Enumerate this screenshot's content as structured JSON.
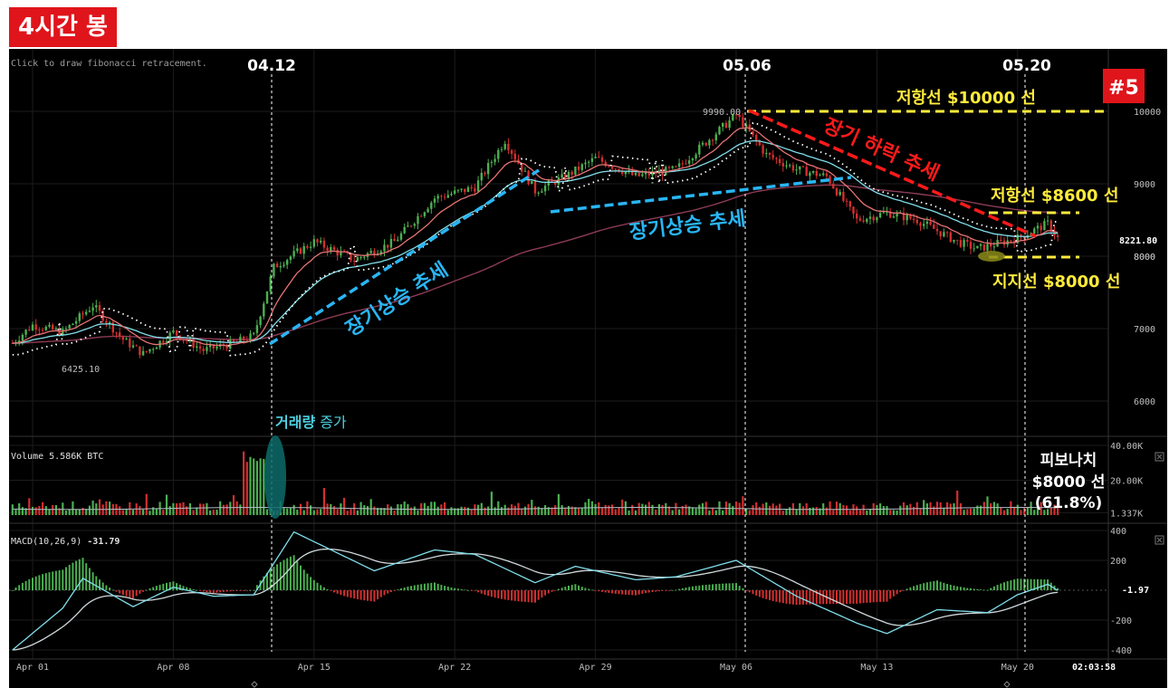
{
  "title": "4시간 봉",
  "badge": "#5",
  "hint": "Click to draw fibonacci retracement.",
  "date_markers": [
    "04.12",
    "05.06",
    "05.20"
  ],
  "annotations": {
    "resistance_10000": "저항선 $10000 선",
    "resistance_8600": "저항선 $8600 선",
    "support_8000": "지지선 $8000 선",
    "uptrend_1": "장기상승 추세",
    "uptrend_2": "장기상승 추세",
    "downtrend": "장기 하락 추세",
    "volume_increase_bold": "거래량",
    "volume_increase_rest": " 증가",
    "fibonacci_1": "피보나치",
    "fibonacci_2": "$8000 선",
    "fibonacci_3": "(61.8%)"
  },
  "price_labels": {
    "high": "9990.00",
    "low": "6425.10",
    "last": "8221.80"
  },
  "volume_header": "Volume  5.586K BTC",
  "macd_header_label": "MACD(10,26,9)",
  "macd_header_value": "-31.79",
  "macd_value_label": "-1.97",
  "timestamp": "02:03:58",
  "colors": {
    "up": "#4caf50",
    "down": "#d32f2f",
    "resistance": "#ffeb3b",
    "uptrend": "#29b6f6",
    "downtrend": "#ff1a1a",
    "badge": "#e0151b",
    "ma_fast": "#e57373",
    "ma_mid": "#80deea",
    "ma_slow": "#8d3b55",
    "dotted": "#ffffff"
  },
  "chart_data": [
    {
      "type": "candlestick",
      "title": "",
      "x_ticks": [
        "Apr 01",
        "Apr 08",
        "Apr 15",
        "Apr 22",
        "Apr 29",
        "May 06",
        "May 13",
        "May 20"
      ],
      "y_ticks": [
        "10000",
        "9000",
        "8000",
        "7000",
        "6000"
      ],
      "ylim": [
        5500,
        10300
      ],
      "log_scale": false,
      "grid": true,
      "support_resistance": [
        10000,
        8600,
        8000
      ],
      "annotated_high": 9990.0,
      "annotated_low": 6425.1,
      "last_price": 8221.8,
      "close_path": [
        {
          "x": "Mar 31 00:00",
          "y": 6800
        },
        {
          "x": "Apr 01 00:00",
          "y": 7050
        },
        {
          "x": "Apr 02 12:00",
          "y": 6950
        },
        {
          "x": "Apr 04 00:00",
          "y": 7320
        },
        {
          "x": "Apr 05 12:00",
          "y": 6850
        },
        {
          "x": "Apr 06 12:00",
          "y": 6650
        },
        {
          "x": "Apr 08 00:00",
          "y": 6950
        },
        {
          "x": "Apr 09 12:00",
          "y": 6700
        },
        {
          "x": "Apr 11 00:00",
          "y": 6800
        },
        {
          "x": "Apr 12 00:00",
          "y": 6900
        },
        {
          "x": "Apr 13 00:00",
          "y": 7850
        },
        {
          "x": "Apr 15 00:00",
          "y": 8200
        },
        {
          "x": "Apr 17 00:00",
          "y": 7950
        },
        {
          "x": "Apr 19 00:00",
          "y": 8200
        },
        {
          "x": "Apr 21 00:00",
          "y": 8800
        },
        {
          "x": "Apr 23 00:00",
          "y": 8950
        },
        {
          "x": "Apr 24 12:00",
          "y": 9600
        },
        {
          "x": "Apr 26 00:00",
          "y": 8900
        },
        {
          "x": "Apr 27 12:00",
          "y": 9100
        },
        {
          "x": "Apr 29 00:00",
          "y": 9350
        },
        {
          "x": "May 01 00:00",
          "y": 9100
        },
        {
          "x": "May 03 00:00",
          "y": 9200
        },
        {
          "x": "May 05 00:00",
          "y": 9700
        },
        {
          "x": "May 06 00:00",
          "y": 9950
        },
        {
          "x": "May 07 12:00",
          "y": 9400
        },
        {
          "x": "May 09 00:00",
          "y": 9200
        },
        {
          "x": "May 10 12:00",
          "y": 9100
        },
        {
          "x": "May 12 00:00",
          "y": 8500
        },
        {
          "x": "May 13 12:00",
          "y": 8600
        },
        {
          "x": "May 15 00:00",
          "y": 8500
        },
        {
          "x": "May 17 00:00",
          "y": 8200
        },
        {
          "x": "May 18 00:00",
          "y": 8100
        },
        {
          "x": "May 20 00:00",
          "y": 8250
        },
        {
          "x": "May 21 12:00",
          "y": 8450
        },
        {
          "x": "May 22 00:00",
          "y": 8250
        }
      ]
    },
    {
      "type": "bar",
      "title": "Volume",
      "y_ticks": [
        "40.00K",
        "20.00K",
        "1.337K"
      ],
      "ylim": [
        0,
        40000
      ],
      "current_volume": 1337,
      "volume_spike_date": "Apr 12"
    },
    {
      "type": "line",
      "title": "MACD(10,26,9)",
      "y_ticks": [
        "400",
        "200",
        "-200",
        "-400"
      ],
      "ylim": [
        -420,
        420
      ],
      "macd_path": [
        {
          "x": "Mar 31 00:00",
          "y": -400
        },
        {
          "x": "Apr 02 12:00",
          "y": -120
        },
        {
          "x": "Apr 03 12:00",
          "y": 80
        },
        {
          "x": "Apr 06 00:00",
          "y": -110
        },
        {
          "x": "Apr 08 00:00",
          "y": 20
        },
        {
          "x": "Apr 10 00:00",
          "y": -40
        },
        {
          "x": "Apr 12 00:00",
          "y": -30
        },
        {
          "x": "Apr 14 00:00",
          "y": 390
        },
        {
          "x": "Apr 18 00:00",
          "y": 130
        },
        {
          "x": "Apr 21 00:00",
          "y": 270
        },
        {
          "x": "Apr 23 00:00",
          "y": 240
        },
        {
          "x": "Apr 26 00:00",
          "y": 50
        },
        {
          "x": "Apr 28 00:00",
          "y": 160
        },
        {
          "x": "May 01 00:00",
          "y": 70
        },
        {
          "x": "May 03 00:00",
          "y": 90
        },
        {
          "x": "May 06 00:00",
          "y": 200
        },
        {
          "x": "May 09 00:00",
          "y": -40
        },
        {
          "x": "May 12 00:00",
          "y": -220
        },
        {
          "x": "May 13 12:00",
          "y": -290
        },
        {
          "x": "May 16 00:00",
          "y": -130
        },
        {
          "x": "May 18 12:00",
          "y": -150
        },
        {
          "x": "May 20 00:00",
          "y": -30
        },
        {
          "x": "May 21 12:00",
          "y": 40
        },
        {
          "x": "May 22 00:00",
          "y": -2
        }
      ]
    }
  ]
}
